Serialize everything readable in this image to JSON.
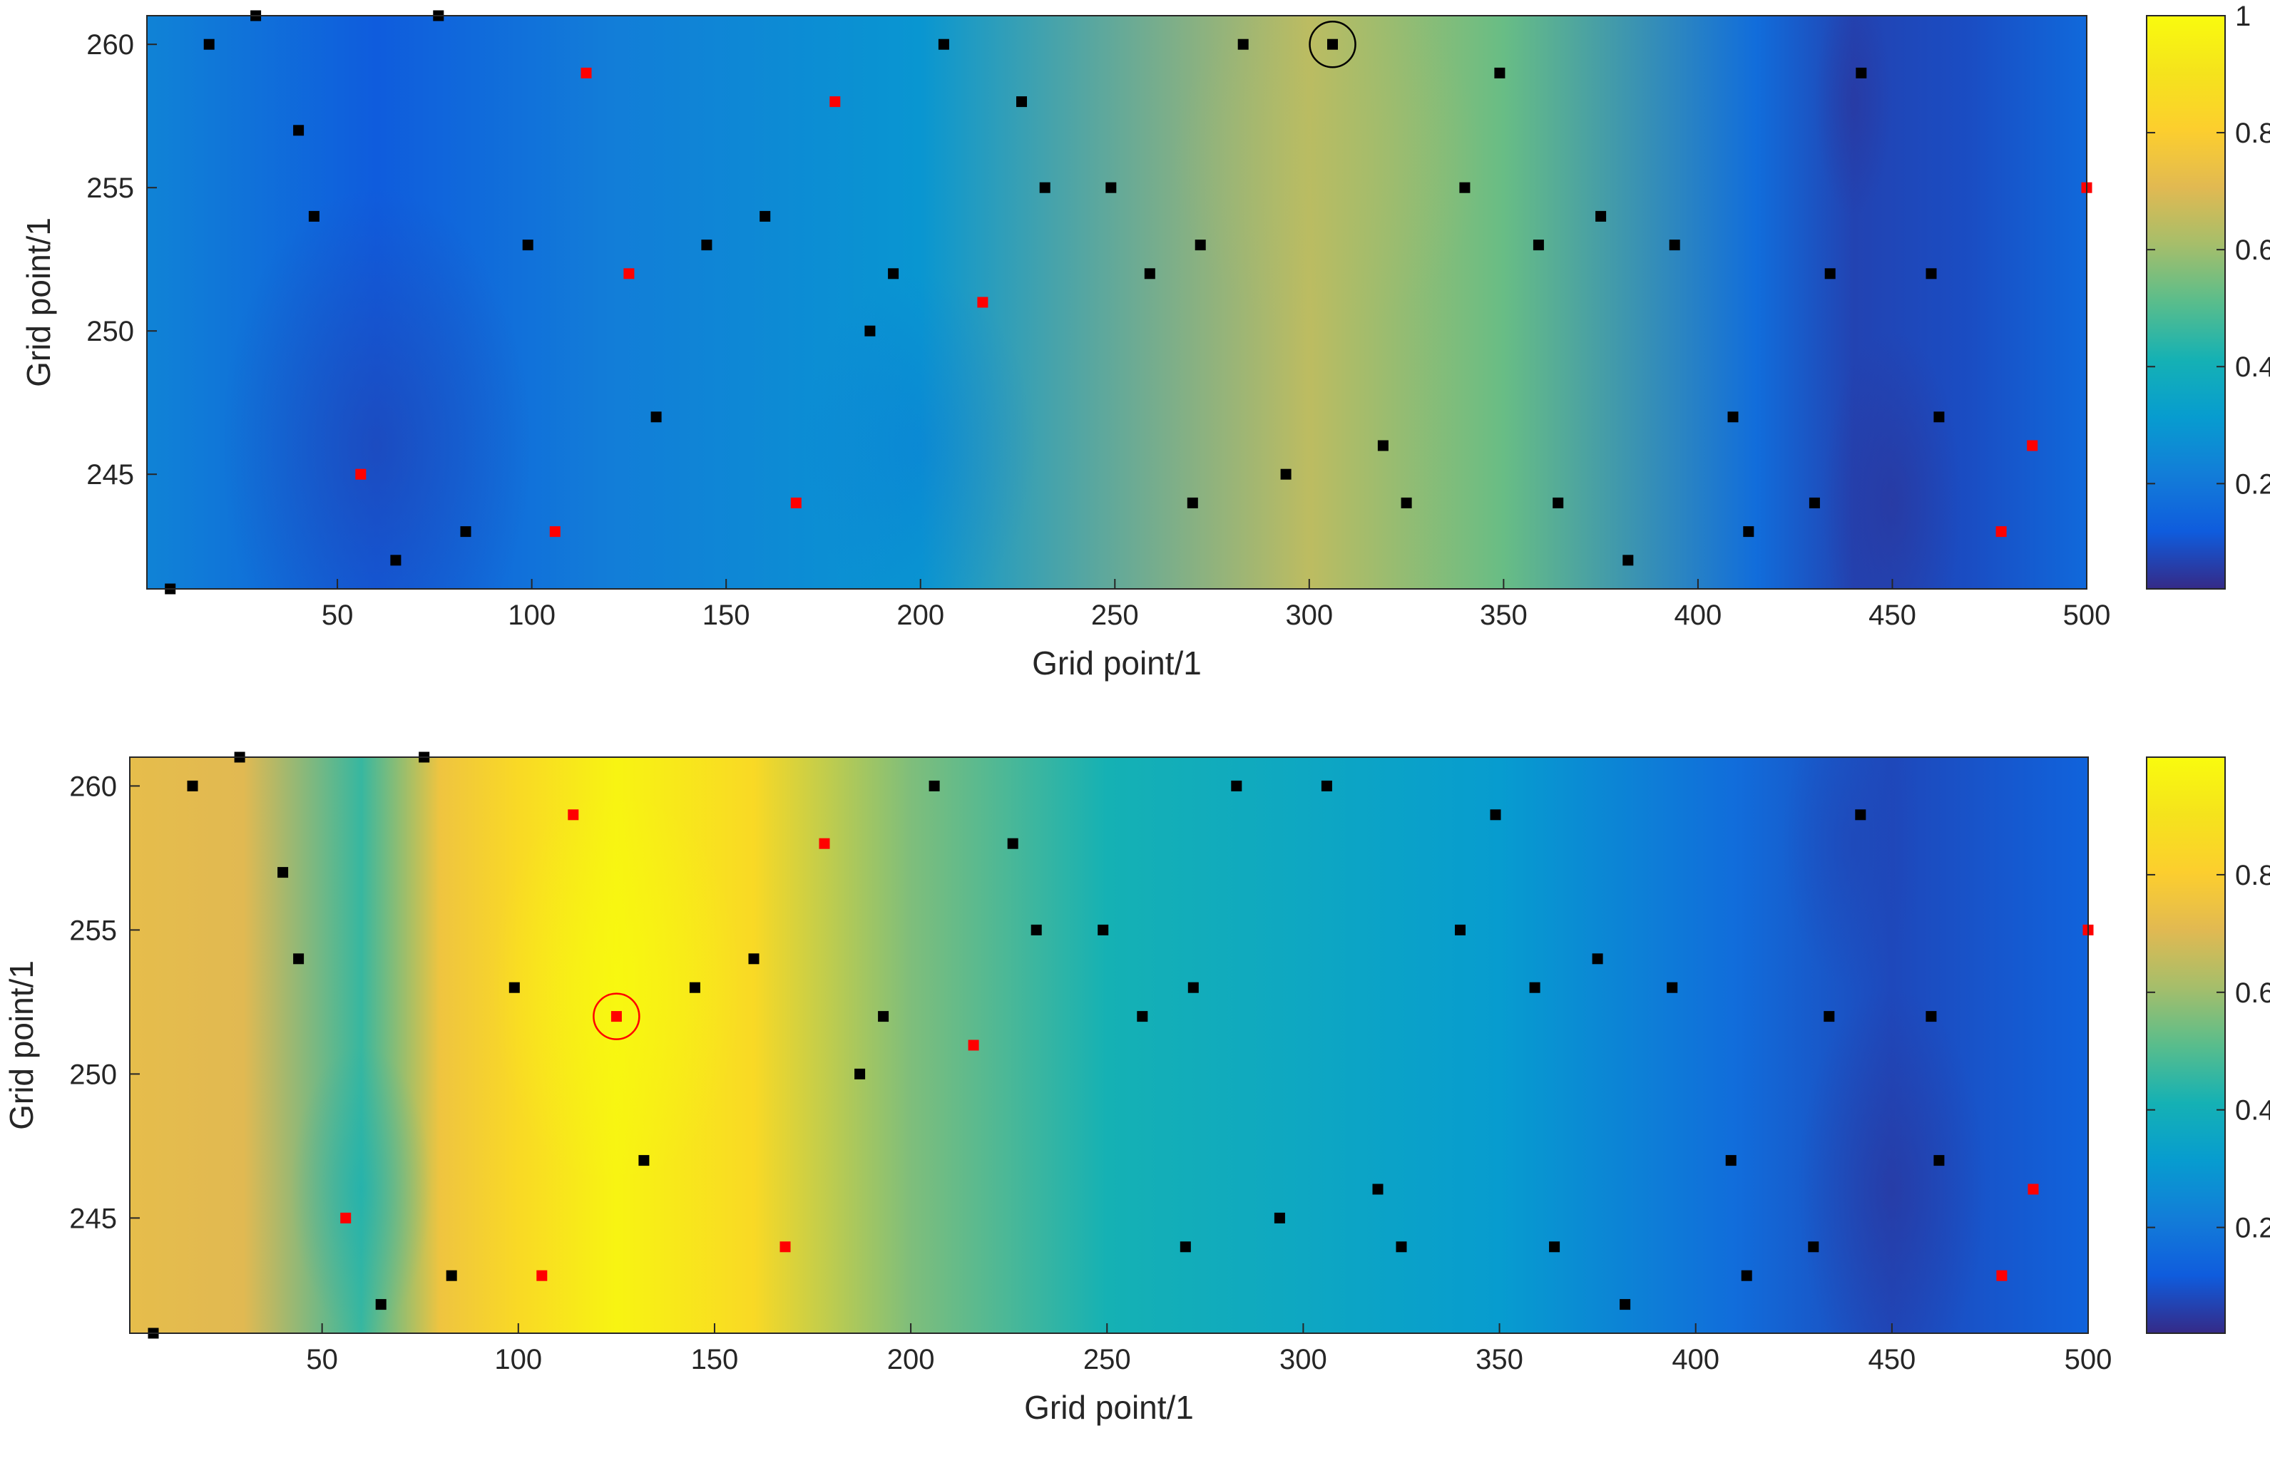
{
  "chart_data": [
    {
      "type": "heatmap",
      "title": "",
      "xlabel": "Grid point/1",
      "ylabel": "Grid point/1",
      "xlim": [
        1,
        500
      ],
      "ylim": [
        241,
        261
      ],
      "xticks": [
        50,
        100,
        150,
        200,
        250,
        300,
        350,
        400,
        450,
        500
      ],
      "yticks": [
        245,
        250,
        255,
        260
      ],
      "colorbar": {
        "ticks": [
          0.2,
          0.4,
          0.6,
          0.8,
          1
        ],
        "range": [
          0.02,
          1
        ],
        "colormap": "parula"
      },
      "field_profile_x": [
        1,
        60,
        120,
        200,
        300,
        350,
        415,
        440,
        470,
        500
      ],
      "field_profile_value": [
        0.22,
        0.1,
        0.2,
        0.28,
        0.64,
        0.52,
        0.15,
        0.05,
        0.07,
        0.14
      ],
      "black_points": [
        [
          7,
          241
        ],
        [
          17,
          260
        ],
        [
          29,
          261
        ],
        [
          40,
          257
        ],
        [
          44,
          254
        ],
        [
          76,
          261
        ],
        [
          65,
          242
        ],
        [
          83,
          243
        ],
        [
          99,
          253
        ],
        [
          132,
          247
        ],
        [
          145,
          253
        ],
        [
          160,
          254
        ],
        [
          187,
          250
        ],
        [
          193,
          252
        ],
        [
          206,
          260
        ],
        [
          226,
          258
        ],
        [
          232,
          255
        ],
        [
          249,
          255
        ],
        [
          259,
          252
        ],
        [
          270,
          244
        ],
        [
          272,
          253
        ],
        [
          283,
          260
        ],
        [
          294,
          245
        ],
        [
          306,
          260
        ],
        [
          319,
          246
        ],
        [
          325,
          244
        ],
        [
          340,
          255
        ],
        [
          349,
          259
        ],
        [
          359,
          253
        ],
        [
          364,
          244
        ],
        [
          375,
          254
        ],
        [
          382,
          242
        ],
        [
          394,
          253
        ],
        [
          409,
          247
        ],
        [
          413,
          243
        ],
        [
          430,
          244
        ],
        [
          434,
          252
        ],
        [
          442,
          259
        ],
        [
          460,
          252
        ],
        [
          462,
          247
        ]
      ],
      "red_points": [
        [
          56,
          245
        ],
        [
          106,
          243
        ],
        [
          114,
          259
        ],
        [
          125,
          252
        ],
        [
          168,
          244
        ],
        [
          178,
          258
        ],
        [
          216,
          251
        ],
        [
          478,
          243
        ],
        [
          486,
          246
        ],
        [
          500,
          255
        ]
      ],
      "highlight": {
        "x": 306,
        "y": 260,
        "color": "#000000"
      }
    },
    {
      "type": "heatmap",
      "title": "",
      "xlabel": "Grid point/1",
      "ylabel": "Grid point/1",
      "xlim": [
        1,
        500
      ],
      "ylim": [
        241,
        261
      ],
      "xticks": [
        50,
        100,
        150,
        200,
        250,
        300,
        350,
        400,
        450,
        500
      ],
      "yticks": [
        245,
        250,
        255,
        260
      ],
      "colorbar": {
        "ticks": [
          0.2,
          0.4,
          0.6,
          0.8
        ],
        "range": [
          0.02,
          1
        ],
        "colormap": "parula"
      },
      "field_profile_x": [
        1,
        30,
        60,
        80,
        100,
        125,
        160,
        200,
        250,
        300,
        350,
        410,
        450,
        500
      ],
      "field_profile_value": [
        0.72,
        0.7,
        0.45,
        0.75,
        0.85,
        0.97,
        0.85,
        0.55,
        0.4,
        0.35,
        0.3,
        0.15,
        0.06,
        0.12
      ],
      "black_points": [
        [
          7,
          241
        ],
        [
          17,
          260
        ],
        [
          29,
          261
        ],
        [
          40,
          257
        ],
        [
          44,
          254
        ],
        [
          76,
          261
        ],
        [
          65,
          242
        ],
        [
          83,
          243
        ],
        [
          99,
          253
        ],
        [
          132,
          247
        ],
        [
          145,
          253
        ],
        [
          160,
          254
        ],
        [
          187,
          250
        ],
        [
          193,
          252
        ],
        [
          206,
          260
        ],
        [
          226,
          258
        ],
        [
          232,
          255
        ],
        [
          249,
          255
        ],
        [
          259,
          252
        ],
        [
          270,
          244
        ],
        [
          272,
          253
        ],
        [
          283,
          260
        ],
        [
          294,
          245
        ],
        [
          306,
          260
        ],
        [
          319,
          246
        ],
        [
          325,
          244
        ],
        [
          340,
          255
        ],
        [
          349,
          259
        ],
        [
          359,
          253
        ],
        [
          364,
          244
        ],
        [
          375,
          254
        ],
        [
          382,
          242
        ],
        [
          394,
          253
        ],
        [
          409,
          247
        ],
        [
          413,
          243
        ],
        [
          430,
          244
        ],
        [
          434,
          252
        ],
        [
          442,
          259
        ],
        [
          460,
          252
        ],
        [
          462,
          247
        ]
      ],
      "red_points": [
        [
          56,
          245
        ],
        [
          106,
          243
        ],
        [
          114,
          259
        ],
        [
          125,
          252
        ],
        [
          168,
          244
        ],
        [
          178,
          258
        ],
        [
          216,
          251
        ],
        [
          478,
          243
        ],
        [
          486,
          246
        ],
        [
          500,
          255
        ]
      ],
      "highlight": {
        "x": 125,
        "y": 252,
        "color": "#ff0000"
      }
    }
  ]
}
